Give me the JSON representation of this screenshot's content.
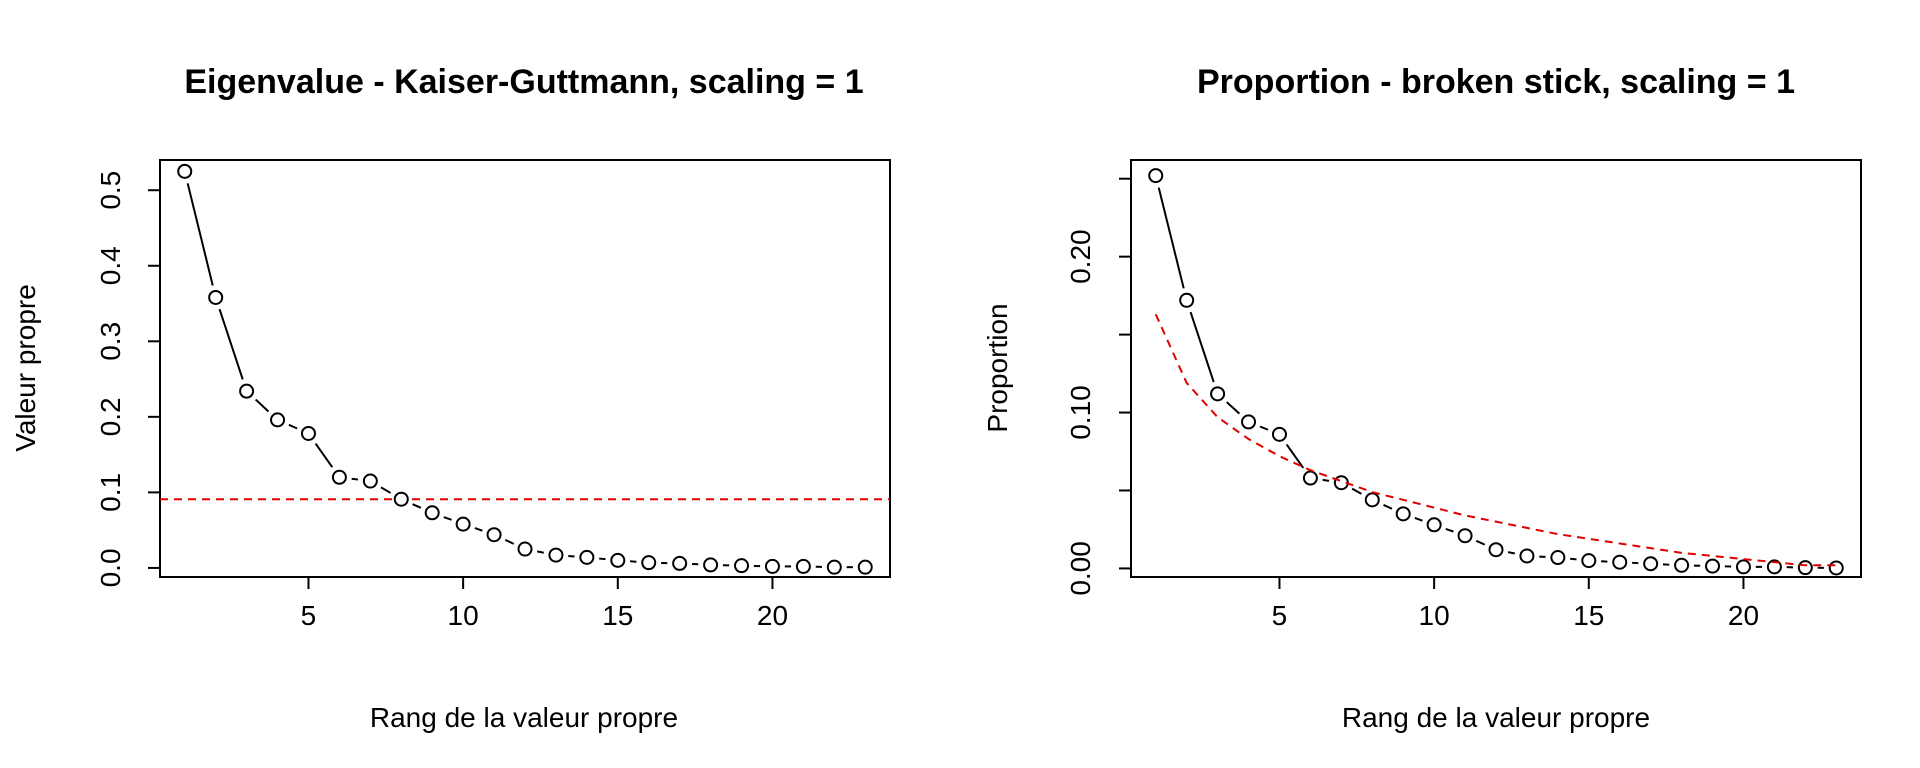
{
  "chart_data": [
    {
      "type": "scatter",
      "title": "Eigenvalue - Kaiser-Guttmann, scaling = 1",
      "xlabel": "Rang de la valeur propre",
      "ylabel": "Valeur propre",
      "xlim": [
        0.2,
        23.8
      ],
      "ylim": [
        -0.012,
        0.54
      ],
      "x_ticks": [
        5,
        10,
        15,
        20
      ],
      "x_tick_labels": [
        "5",
        "10",
        "15",
        "20"
      ],
      "y_ticks": [
        0.0,
        0.1,
        0.2,
        0.3,
        0.4,
        0.5
      ],
      "y_tick_labels": [
        "0.0",
        "0.1",
        "0.2",
        "0.3",
        "0.4",
        "0.5"
      ],
      "grid": false,
      "series": [
        {
          "x": [
            1,
            2,
            3,
            4,
            5,
            6,
            7,
            8,
            9,
            10,
            11,
            12,
            13,
            14,
            15,
            16,
            17,
            18,
            19,
            20,
            21,
            22,
            23
          ],
          "values": [
            0.525,
            0.358,
            0.234,
            0.196,
            0.178,
            0.12,
            0.115,
            0.091,
            0.073,
            0.058,
            0.044,
            0.025,
            0.017,
            0.014,
            0.01,
            0.007,
            0.006,
            0.004,
            0.003,
            0.002,
            0.002,
            0.001,
            0.001
          ],
          "color": "#000000",
          "marker": "open-circle",
          "line": "solid"
        }
      ],
      "reference_line": {
        "orientation": "horizontal",
        "y": 0.091,
        "color": "#e00000",
        "style": "dashed"
      }
    },
    {
      "type": "scatter",
      "title": "Proportion - broken stick, scaling = 1",
      "xlabel": "Rang de la valeur propre",
      "ylabel": "Proportion",
      "xlim": [
        0.2,
        23.8
      ],
      "ylim": [
        -0.0055,
        0.262
      ],
      "x_ticks": [
        5,
        10,
        15,
        20
      ],
      "x_tick_labels": [
        "5",
        "10",
        "15",
        "20"
      ],
      "y_ticks": [
        0.0,
        0.05,
        0.1,
        0.15,
        0.2,
        0.25
      ],
      "y_tick_labels": [
        "0.00",
        "",
        "0.10",
        "",
        "0.20",
        ""
      ],
      "grid": false,
      "series": [
        {
          "x": [
            1,
            2,
            3,
            4,
            5,
            6,
            7,
            8,
            9,
            10,
            11,
            12,
            13,
            14,
            15,
            16,
            17,
            18,
            19,
            20,
            21,
            22,
            23
          ],
          "values": [
            0.252,
            0.172,
            0.112,
            0.094,
            0.086,
            0.058,
            0.055,
            0.044,
            0.035,
            0.028,
            0.021,
            0.012,
            0.008,
            0.007,
            0.005,
            0.004,
            0.003,
            0.002,
            0.0015,
            0.001,
            0.001,
            0.0005,
            0.0003
          ],
          "color": "#000000",
          "marker": "open-circle",
          "line": "solid"
        },
        {
          "x": [
            1,
            2,
            3,
            4,
            5,
            6,
            7,
            8,
            9,
            10,
            11,
            12,
            13,
            14,
            15,
            16,
            17,
            18,
            19,
            20,
            21,
            22,
            23
          ],
          "values": [
            0.163,
            0.119,
            0.097,
            0.083,
            0.072,
            0.063,
            0.056,
            0.049,
            0.044,
            0.039,
            0.034,
            0.03,
            0.026,
            0.022,
            0.019,
            0.016,
            0.013,
            0.01,
            0.008,
            0.006,
            0.004,
            0.002,
            0.002
          ],
          "color": "#e00000",
          "marker": "none",
          "line": "dashed"
        }
      ]
    }
  ]
}
